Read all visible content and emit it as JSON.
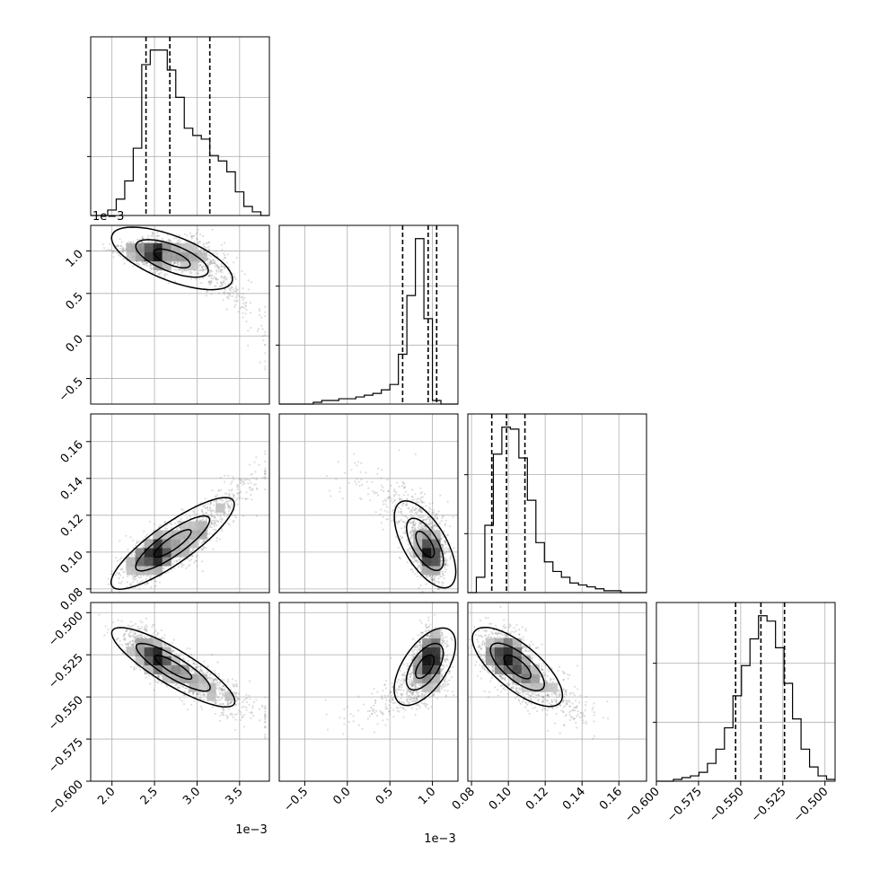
{
  "chart_data": {
    "type": "corner",
    "grid": true,
    "parameters": [
      {
        "range": [
          1.75,
          3.85
        ],
        "ticks": [
          "2.0",
          "2.5",
          "3.0",
          "3.5"
        ],
        "tick_values": [
          2.0,
          2.5,
          3.0,
          3.5
        ],
        "offset_text": "1e−3",
        "quantiles": [
          2.4,
          2.68,
          3.15
        ]
      },
      {
        "range": [
          -0.8,
          1.3
        ],
        "ticks": [
          "−0.5",
          "0.0",
          "0.5",
          "1.0"
        ],
        "tick_values": [
          -0.5,
          0.0,
          0.5,
          1.0
        ],
        "offset_text": "1e−3",
        "quantiles": [
          0.65,
          0.95,
          1.05
        ]
      },
      {
        "range": [
          0.078,
          0.175
        ],
        "ticks": [
          "0.08",
          "0.10",
          "0.12",
          "0.14",
          "0.16"
        ],
        "tick_values": [
          0.08,
          0.1,
          0.12,
          0.14,
          0.16
        ],
        "y_ticks": [
          "0.08",
          "0.10",
          "0.12",
          "0.14",
          "0.16"
        ],
        "quantiles": [
          0.091,
          0.099,
          0.109
        ]
      },
      {
        "range": [
          -0.6,
          -0.494
        ],
        "ticks": [
          "−0.600",
          "−0.575",
          "−0.550",
          "−0.525",
          "−0.500"
        ],
        "tick_values": [
          -0.6,
          -0.575,
          -0.55,
          -0.525,
          -0.5
        ],
        "quantiles": [
          -0.553,
          -0.538,
          -0.524
        ]
      }
    ],
    "histograms": [
      {
        "param": 0,
        "edges_range": [
          1.75,
          3.85
        ],
        "counts": [
          0,
          0,
          3,
          9,
          19,
          37,
          83,
          91,
          91,
          80,
          65,
          48,
          44,
          42,
          33,
          30,
          24,
          13,
          5,
          2,
          0
        ]
      },
      {
        "param": 1,
        "edges_range": [
          -0.8,
          1.3
        ],
        "counts": [
          0,
          0,
          0,
          0,
          1,
          2,
          2,
          3,
          3,
          4,
          5,
          6,
          8,
          11,
          28,
          61,
          93,
          48,
          2,
          0,
          0
        ]
      },
      {
        "param": 2,
        "edges_range": [
          0.078,
          0.175
        ],
        "counts": [
          0,
          8,
          35,
          72,
          86,
          85,
          70,
          48,
          26,
          16,
          11,
          8,
          5,
          4,
          3,
          2,
          1,
          1,
          0,
          0,
          0
        ]
      },
      {
        "param": 3,
        "edges_range": [
          -0.6,
          -0.494
        ],
        "counts": [
          0,
          0,
          1,
          2,
          3,
          5,
          10,
          18,
          30,
          48,
          65,
          80,
          93,
          90,
          75,
          55,
          35,
          18,
          8,
          3,
          1
        ]
      }
    ]
  }
}
